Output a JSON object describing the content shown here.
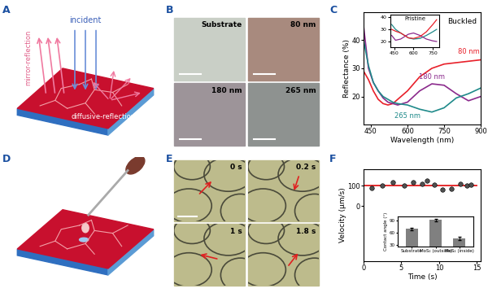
{
  "panel_labels": [
    "A",
    "B",
    "C",
    "D",
    "E",
    "F"
  ],
  "diagram_A": {
    "incident_label": "incident",
    "mirror_label": "mirror-reflection",
    "diffuse_label": "diffusive-reflection"
  },
  "images_B": [
    "Substrate",
    "80 nm",
    "180 nm",
    "265 nm"
  ],
  "frames_E": [
    "0 s",
    "0.2 s",
    "1 s",
    "1.8 s"
  ],
  "chart_data": [
    {
      "type": "line",
      "title": "Buckled",
      "x_label": "Wavelength (nm)",
      "y_label": "Reflectance (%)",
      "xlim": [
        420,
        900
      ],
      "xticks": [
        450,
        600,
        750,
        900
      ],
      "ylim": [
        10,
        50
      ],
      "yticks": [
        20,
        30,
        40
      ],
      "x": [
        420,
        440,
        460,
        480,
        500,
        520,
        540,
        560,
        600,
        650,
        700,
        750,
        800,
        850,
        900
      ],
      "series": [
        {
          "color": "#e8202a",
          "values": [
            29,
            26,
            22,
            19,
            17.5,
            17,
            17.5,
            19,
            22,
            27,
            30,
            31.5,
            32,
            32.5,
            33
          ]
        },
        {
          "color": "#8b2a8c",
          "values": [
            45,
            30,
            25,
            22,
            19.5,
            18,
            17.5,
            17,
            18,
            22,
            24.5,
            24,
            21,
            18.5,
            20
          ]
        },
        {
          "color": "#1f8a8a",
          "values": [
            40,
            31,
            25,
            22,
            20,
            19,
            18,
            17.5,
            17,
            15.5,
            14.5,
            16,
            19.5,
            21,
            23
          ]
        }
      ],
      "annotations": [
        {
          "text": "80 nm",
          "x": 850,
          "y": 36,
          "color": "#e8202a"
        },
        {
          "text": "180 nm",
          "x": 700,
          "y": 27,
          "color": "#8b2a8c"
        },
        {
          "text": "265 nm",
          "x": 600,
          "y": 13,
          "color": "#1f8a8a"
        }
      ],
      "inset": {
        "title": "Pristine",
        "xlim": [
          420,
          800
        ],
        "xticks": [
          450,
          600,
          750
        ],
        "ylim": [
          15,
          42
        ],
        "yticks": [
          20,
          30,
          40
        ],
        "x": [
          430,
          460,
          500,
          560,
          600,
          650,
          700,
          750,
          780
        ],
        "series": [
          {
            "color": "#1f8a8a",
            "values": [
              34,
              30,
              27,
              23,
              22,
              22.5,
              25,
              28,
              30
            ]
          },
          {
            "color": "#8b2a8c",
            "values": [
              25,
              21,
              22,
              26,
              27,
              25,
              22,
              20.5,
              20
            ]
          },
          {
            "color": "#e8202a",
            "values": [
              30,
              28.5,
              27,
              23,
              22.5,
              24,
              28,
              34,
              38
            ]
          }
        ]
      }
    },
    {
      "type": "scatter",
      "x_label": "Time (s)",
      "y_label": "Velocity (μm/s)",
      "xlim": [
        0,
        15.5
      ],
      "xticks": [
        0,
        5,
        10,
        15
      ],
      "ylim": [
        -270,
        180
      ],
      "yticks": [
        0,
        100
      ],
      "series": [
        {
          "type": "scatter",
          "color": "#505050",
          "marker": "o",
          "x": [
            1.1,
            2.5,
            3.9,
            5.4,
            6.6,
            7.7,
            8.4,
            9.4,
            10.4,
            11.6,
            12.8,
            13.7,
            14.2
          ],
          "values": [
            90,
            100,
            115,
            100,
            115,
            110,
            125,
            105,
            80,
            85,
            110,
            100,
            105
          ]
        },
        {
          "type": "line",
          "color": "#e31a1c",
          "x": [
            0,
            15
          ],
          "values": [
            100,
            100
          ]
        }
      ],
      "inset": {
        "type": "bar",
        "y_label": "Contact angle (°)",
        "categories": [
          "Substrate",
          "MoS₂ (outside)",
          "MoS₂ (inside)"
        ],
        "values": [
          70,
          92,
          45
        ],
        "errors": [
          3,
          3,
          4
        ],
        "color": "#808080",
        "ylim": [
          25,
          100
        ],
        "yticks": [
          30,
          60,
          90
        ]
      }
    }
  ]
}
